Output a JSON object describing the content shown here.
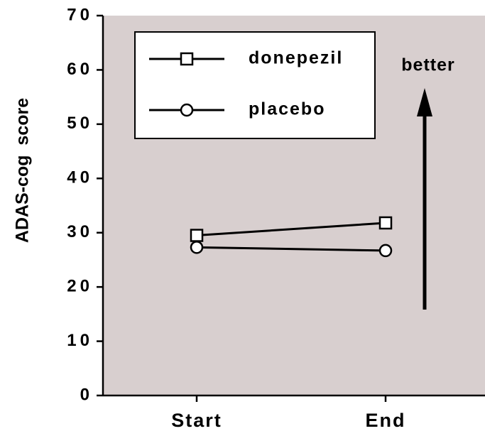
{
  "chart_data": {
    "type": "line",
    "ylabel": "ADAS-cog  score",
    "categories": [
      "Start",
      "End"
    ],
    "series": [
      {
        "name": "donepezil",
        "color": "#000000",
        "marker": "square",
        "values": [
          29.5,
          31.8
        ]
      },
      {
        "name": "placebo",
        "color": "#000000",
        "marker": "circle",
        "values": [
          27.3,
          26.7
        ]
      }
    ],
    "ylim": [
      0,
      70
    ],
    "yticks": [
      0,
      10,
      20,
      30,
      40,
      50,
      60,
      70
    ],
    "annotation": "better",
    "background": "#d8cfcf"
  }
}
